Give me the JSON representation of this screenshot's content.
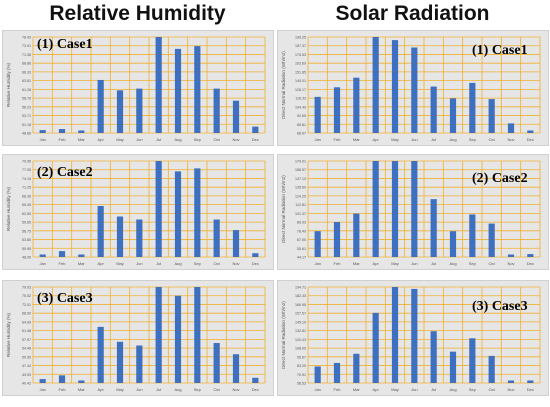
{
  "titles": {
    "left": "Relative Humidity",
    "right": "Solar Radiation"
  },
  "colors": {
    "bar": "#3f6fbf",
    "grid": "#f0b030",
    "panel_bg": "#e6e6e6"
  },
  "chart_data": [
    {
      "type": "bar",
      "case": "(1) Case1",
      "ylabel": "Relative Humidity (%)",
      "categories": [
        "Jan",
        "Feb",
        "Mar",
        "Apr",
        "May",
        "Jun",
        "Jul",
        "Aug",
        "Sep",
        "Oct",
        "Nov",
        "Dec"
      ],
      "yticks": [
        "76.43",
        "73.91",
        "71.38",
        "68.86",
        "66.33",
        "63.81",
        "61.28",
        "58.76",
        "56.23",
        "53.71",
        "51.18",
        "48.66"
      ],
      "ylim": [
        48.66,
        76.43
      ],
      "values": [
        49.5,
        49.8,
        48.66,
        64.0,
        61.0,
        61.5,
        76.43,
        73.0,
        73.8,
        61.5,
        58.0,
        50.5
      ]
    },
    {
      "type": "bar",
      "case": "(1) Case1",
      "ylabel": "Direct Normal Radiation (Wh/m2)",
      "categories": [
        "Jan",
        "Feb",
        "Mar",
        "Apr",
        "May",
        "Jun",
        "Jul",
        "Aug",
        "Sep",
        "Oct",
        "Nov",
        "Dec"
      ],
      "yticks": [
        "199.25",
        "187.37",
        "175.53",
        "163.69",
        "151.85",
        "140.01",
        "128.17",
        "116.33",
        "104.49",
        "92.65",
        "80.81",
        "68.97"
      ],
      "ylim": [
        68.97,
        199.25
      ],
      "values": [
        118.0,
        131.0,
        144.0,
        199.25,
        195.0,
        185.0,
        132.0,
        116.0,
        137.0,
        115.0,
        82.0,
        68.97
      ]
    },
    {
      "type": "bar",
      "case": "(2) Case2",
      "ylabel": "Relative Humidity (%)",
      "categories": [
        "Jan",
        "Feb",
        "Mar",
        "Apr",
        "May",
        "Jun",
        "Jul",
        "Aug",
        "Sep",
        "Oct",
        "Nov",
        "Dec"
      ],
      "yticks": [
        "79.95",
        "77.05",
        "74.15",
        "71.25",
        "68.35",
        "65.45",
        "62.55",
        "59.65",
        "56.75",
        "53.85",
        "50.95",
        "48.05"
      ],
      "ylim": [
        48.05,
        79.95
      ],
      "values": [
        48.3,
        50.0,
        48.05,
        65.0,
        61.5,
        60.5,
        79.95,
        76.5,
        77.5,
        60.5,
        57.0,
        49.3
      ]
    },
    {
      "type": "bar",
      "case": "(2) Case2",
      "ylabel": "Direct Normal Radiation (Wh/m2)",
      "categories": [
        "Jan",
        "Feb",
        "Mar",
        "Apr",
        "May",
        "Jun",
        "Jul",
        "Aug",
        "Sep",
        "Oct",
        "Nov",
        "Dec"
      ],
      "yticks": [
        "170.01",
        "158.57",
        "147.13",
        "135.69",
        "124.25",
        "112.81",
        "101.37",
        "89.93",
        "78.49",
        "67.05",
        "55.61",
        "44.17"
      ],
      "ylim": [
        44.17,
        170.01
      ],
      "values": [
        78.0,
        90.0,
        101.0,
        170.01,
        170.01,
        170.01,
        120.0,
        78.0,
        100.0,
        88.0,
        44.17,
        48.0
      ]
    },
    {
      "type": "bar",
      "case": "(3) Case3",
      "ylabel": "Relative Humidity (%)",
      "categories": [
        "Jan",
        "Feb",
        "Mar",
        "Apr",
        "May",
        "Jun",
        "Jul",
        "Aug",
        "Sep",
        "Oct",
        "Nov",
        "Dec"
      ],
      "yticks": [
        "79.03",
        "75.52",
        "72.01",
        "68.50",
        "64.99",
        "61.48",
        "57.97",
        "54.46",
        "50.95",
        "47.44",
        "43.93",
        "40.42"
      ],
      "ylim": [
        40.42,
        79.03
      ],
      "values": [
        42.0,
        43.5,
        40.42,
        63.0,
        57.0,
        55.5,
        79.03,
        75.5,
        79.03,
        56.5,
        52.0,
        42.5
      ]
    },
    {
      "type": "bar",
      "case": "(3) Case3",
      "ylabel": "Direct Normal Radiation (Wh/m2)",
      "categories": [
        "Jan",
        "Feb",
        "Mar",
        "Apr",
        "May",
        "Jun",
        "Jul",
        "Aug",
        "Sep",
        "Oct",
        "Nov",
        "Dec"
      ],
      "yticks": [
        "194.71",
        "182.33",
        "169.95",
        "157.57",
        "145.19",
        "132.81",
        "120.43",
        "108.05",
        "95.67",
        "83.29",
        "70.91",
        "58.53"
      ],
      "ylim": [
        58.53,
        194.71
      ],
      "values": [
        82.0,
        87.0,
        100.0,
        158.0,
        194.71,
        192.0,
        132.0,
        103.0,
        122.0,
        97.0,
        62.0,
        58.53
      ]
    }
  ]
}
